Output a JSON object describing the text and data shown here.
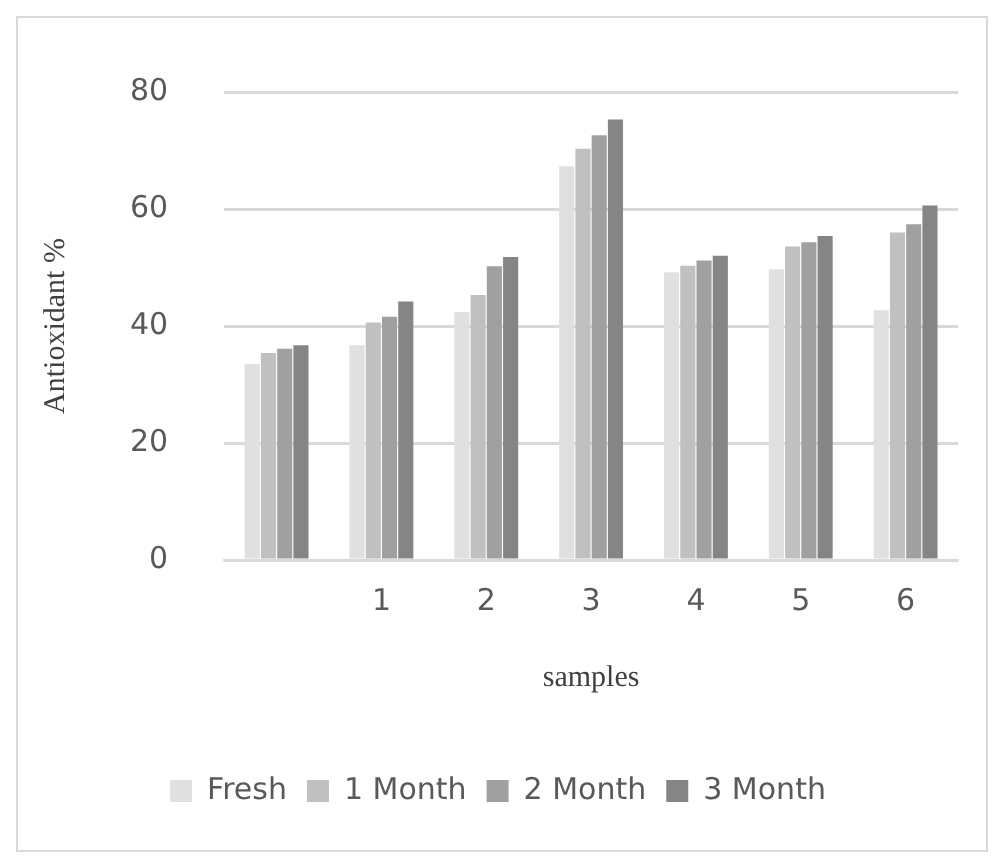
{
  "chart_data": {
    "type": "bar",
    "xlabel": "samples",
    "ylabel": "Antioxidant %",
    "categories": [
      null,
      "1",
      "2",
      "3",
      "4",
      "5",
      "6"
    ],
    "series": [
      {
        "name": "Fresh",
        "color": "#e0e0e0",
        "values": [
          33.5,
          36.7,
          42.4,
          67.3,
          49.2,
          49.7,
          42.7
        ]
      },
      {
        "name": "1 Month",
        "color": "#c0c0c0",
        "values": [
          35.4,
          40.6,
          45.3,
          70.3,
          50.3,
          53.6,
          56.0
        ]
      },
      {
        "name": "2 Month",
        "color": "#a0a0a0",
        "values": [
          36.1,
          41.6,
          50.2,
          72.6,
          51.2,
          54.3,
          57.4
        ]
      },
      {
        "name": "3 Month",
        "color": "#858585",
        "values": [
          36.7,
          44.2,
          51.8,
          75.3,
          52.0,
          55.4,
          60.6
        ]
      }
    ],
    "ylim": [
      0,
      80
    ],
    "yticks": [
      0,
      20,
      40,
      60,
      80
    ],
    "grid": "y",
    "legend": "bottom"
  }
}
